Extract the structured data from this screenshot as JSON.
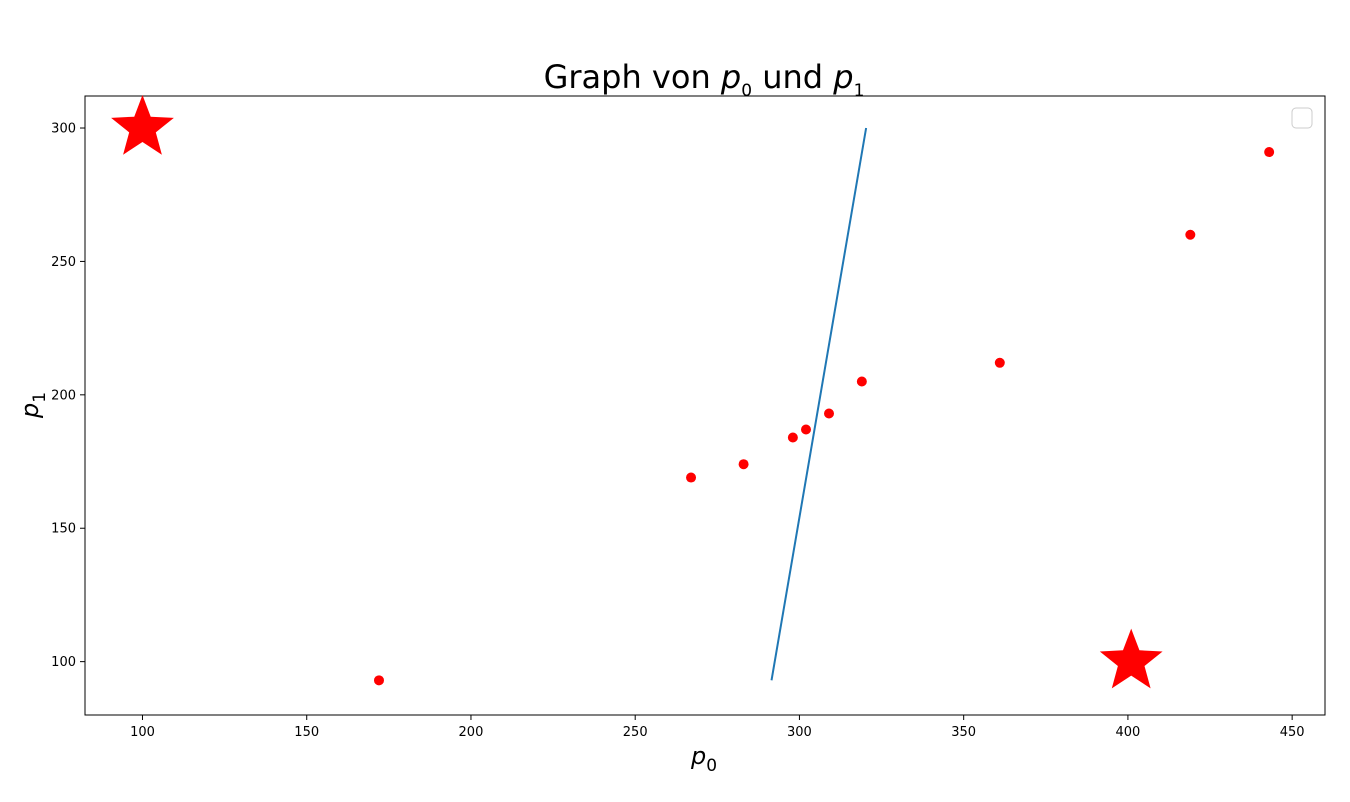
{
  "chart_data": {
    "type": "scatter",
    "title": {
      "prefix": "Graph von ",
      "var1": "p",
      "var1_sub": "0",
      "middle": " und ",
      "var2": "p",
      "var2_sub": "1"
    },
    "xlabel": {
      "var": "p",
      "sub": "0"
    },
    "ylabel": {
      "var": "p",
      "sub": "1"
    },
    "xlim": [
      82.5,
      460
    ],
    "ylim": [
      80,
      312
    ],
    "xticks": [
      100,
      150,
      200,
      250,
      300,
      350,
      400,
      450
    ],
    "yticks": [
      100,
      150,
      200,
      250,
      300
    ],
    "grid": false,
    "legend": "top-right",
    "points": {
      "color": "#ff0000",
      "x": [
        172,
        267,
        283,
        298,
        302,
        309,
        319,
        361,
        419,
        443
      ],
      "y": [
        93,
        169,
        174,
        184,
        187,
        193,
        205,
        212,
        260,
        291
      ]
    },
    "stars": {
      "color": "#ff0000",
      "points": [
        {
          "x": 100,
          "y": 300
        },
        {
          "x": 401,
          "y": 100
        }
      ]
    },
    "line": {
      "color": "#1f77b4",
      "x": [
        291.5,
        320.3
      ],
      "y": [
        93,
        300
      ]
    }
  }
}
